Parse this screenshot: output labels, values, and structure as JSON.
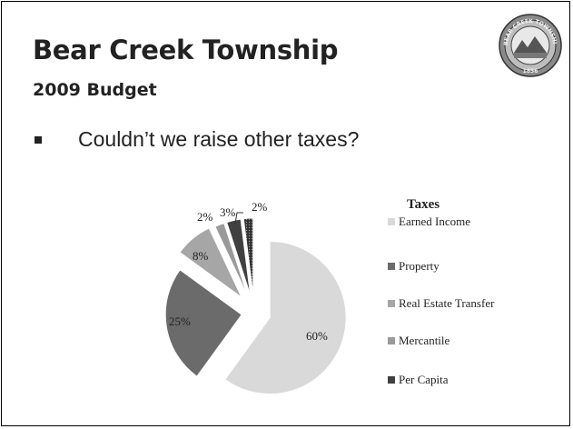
{
  "slide": {
    "title": "Bear Creek Township",
    "subtitle": "2009 Budget",
    "bullet": "Couldn’t we raise other taxes?",
    "seal_text": "BEAR CREEK TOWNSHIP",
    "seal_year": "1856"
  },
  "chart_data": {
    "type": "pie",
    "title": "Taxes",
    "exploded": true,
    "slices": [
      {
        "label": "Earned Income",
        "value": 60,
        "data_label": "60%",
        "color": "#d9d9d9"
      },
      {
        "label": "Property",
        "value": 25,
        "data_label": "25%",
        "color": "#6b6b6b"
      },
      {
        "label": "Real Estate Transfer",
        "value": 8,
        "data_label": "8%",
        "color": "#a6a6a6"
      },
      {
        "label": "Mercantile",
        "value": 2,
        "data_label": "2%",
        "color": "#9a9a9a"
      },
      {
        "label": "Per Capita",
        "value": 3,
        "data_label": "3%",
        "color": "#404040"
      },
      {
        "label": "",
        "value": 2,
        "data_label": "2%",
        "color": "#555555",
        "pattern": "dotted"
      }
    ],
    "legend": {
      "placement": "right",
      "entries": [
        "Earned Income",
        "Property",
        "Real Estate Transfer",
        "Mercantile",
        "Per Capita"
      ]
    }
  }
}
